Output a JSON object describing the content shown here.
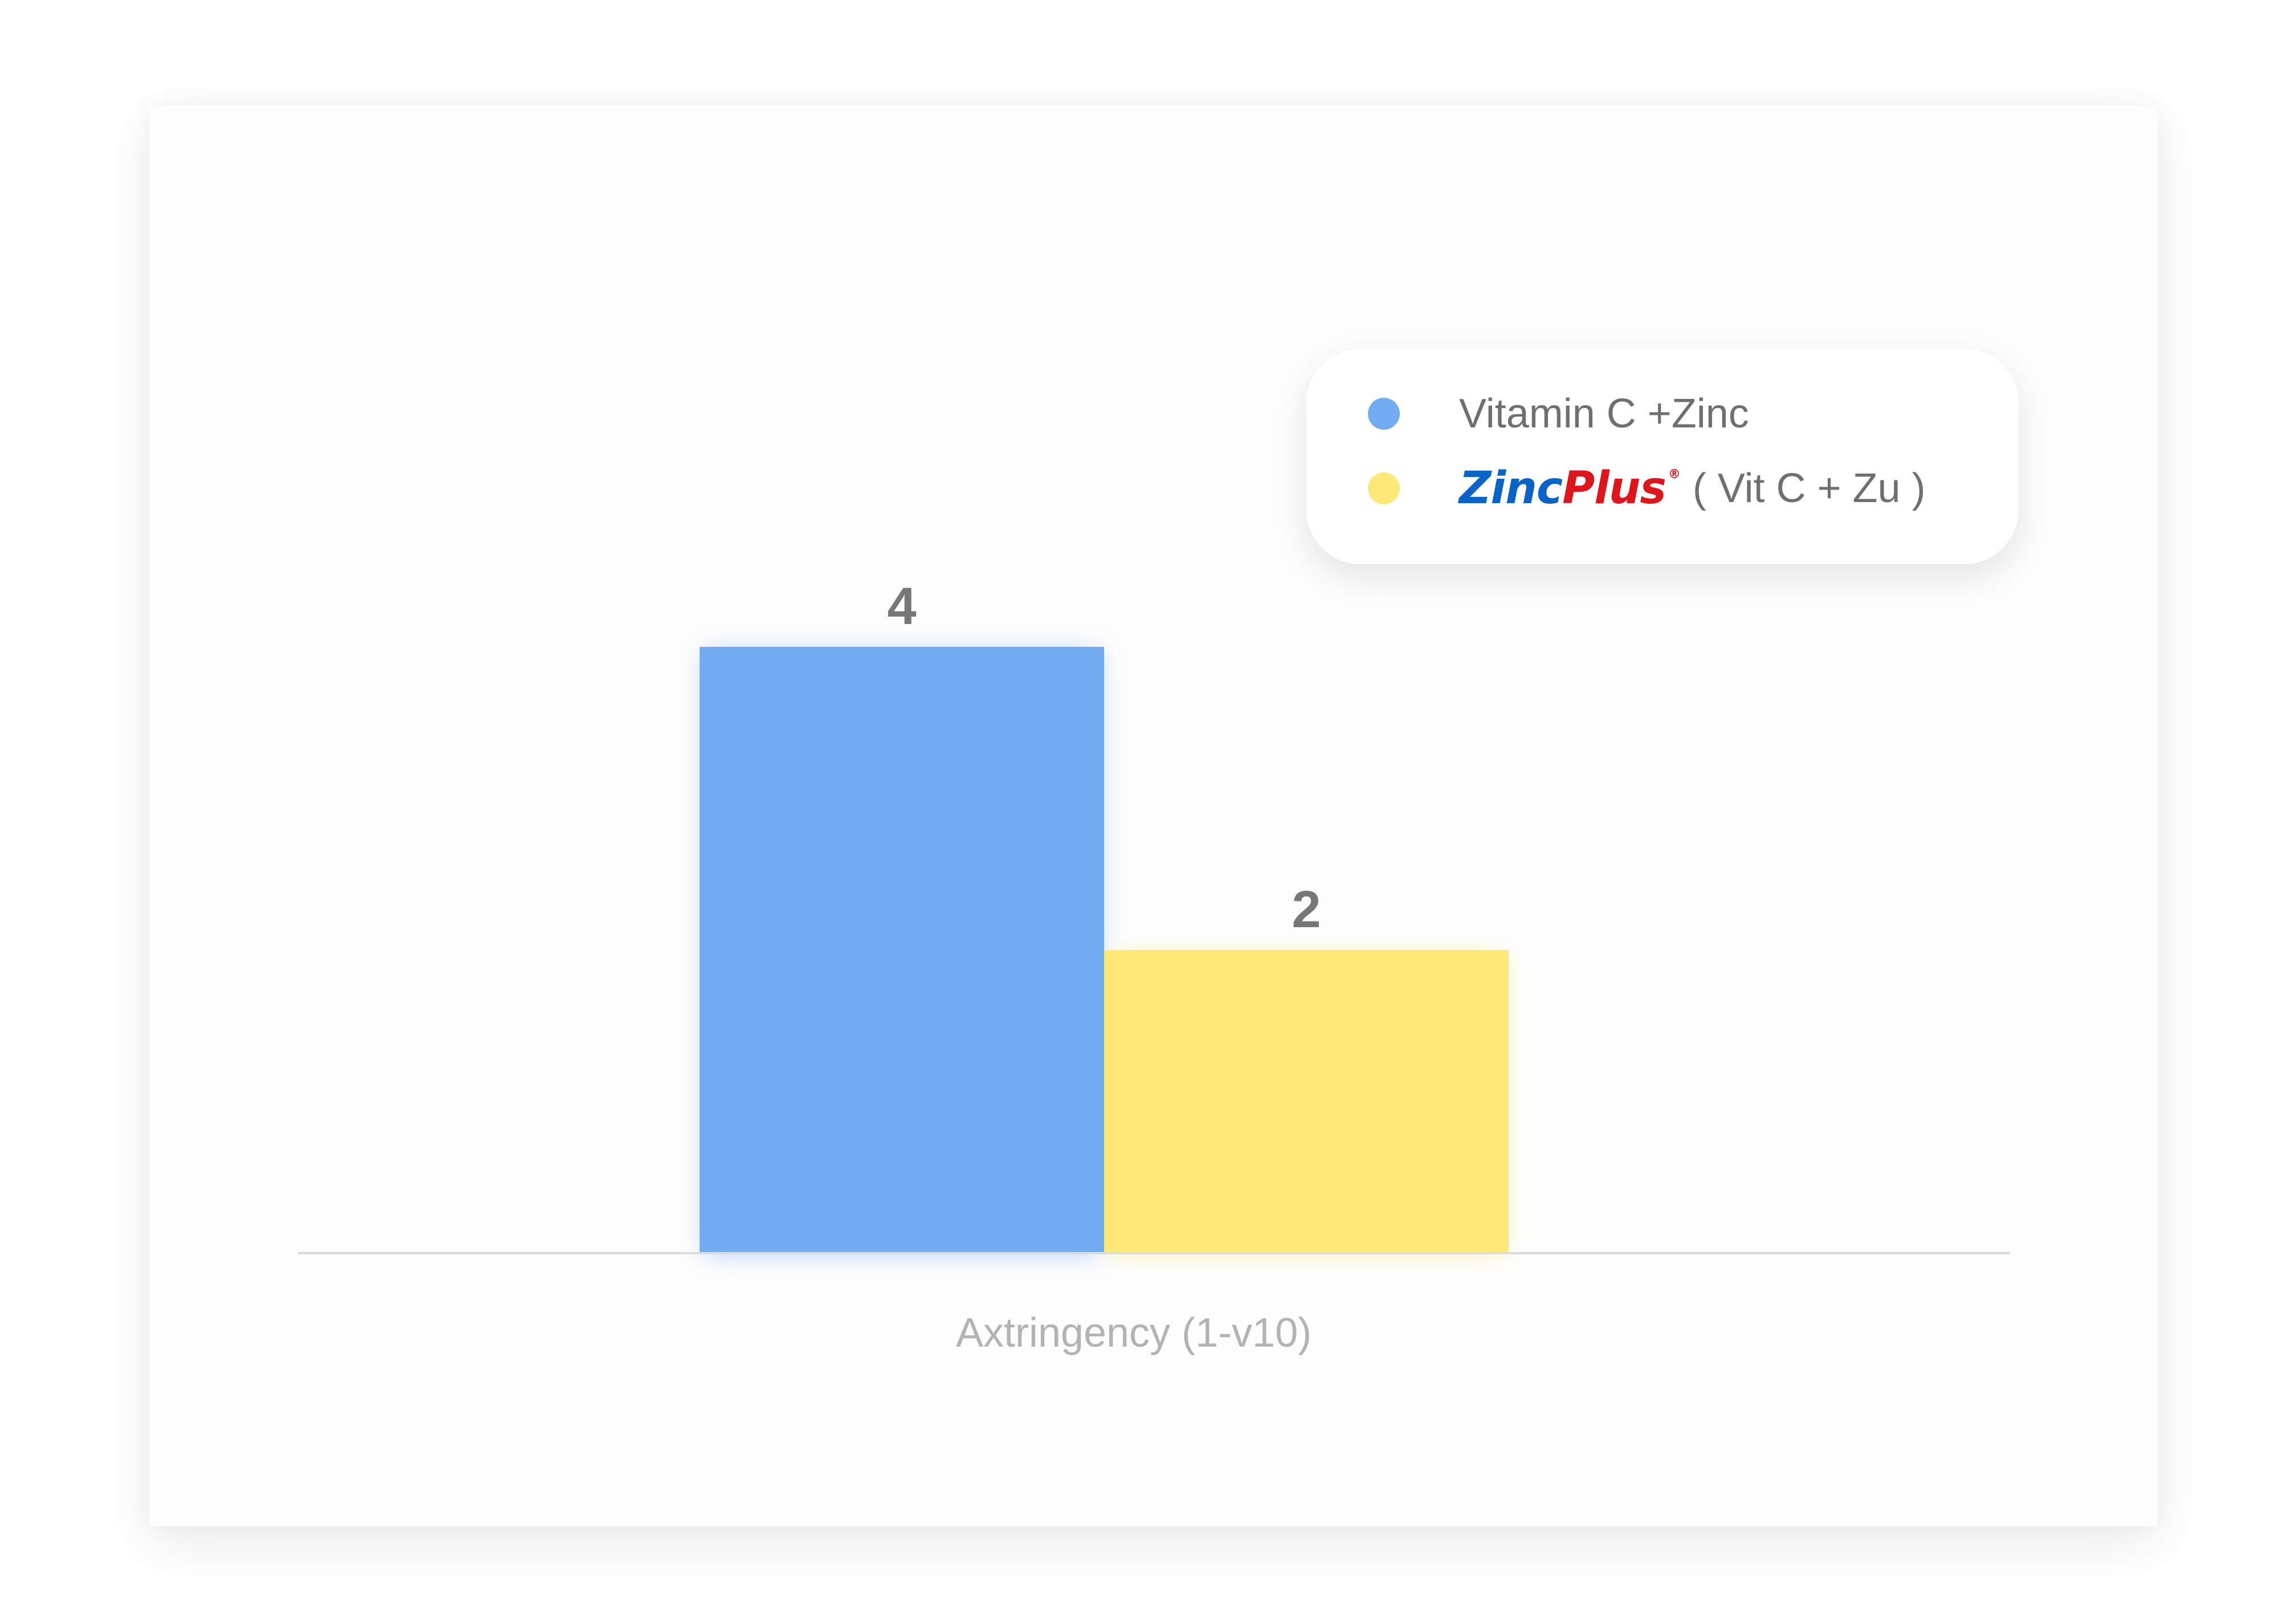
{
  "chart_data": {
    "type": "bar",
    "categories": [
      "Axtringency (1-v10)"
    ],
    "xlabel": "Axtringency (1-v10)",
    "ylabel": "",
    "ylim": [
      0,
      10
    ],
    "grid": false,
    "legend_position": "top-right",
    "series": [
      {
        "name": "Vitamin C +Zinc",
        "values": [
          4
        ],
        "color": "#72abf2",
        "value_label": "4"
      },
      {
        "name": "ZincPlus® ( Vit C + Zu )",
        "values": [
          2
        ],
        "color": "#fee877",
        "value_label": "2"
      }
    ]
  },
  "legend": {
    "items": [
      {
        "label": "Vitamin C +Zinc",
        "color": "#72abf2"
      },
      {
        "brand_part1": "Zinc",
        "brand_part2": "Plus",
        "brand_mark": "®",
        "suffix": "( Vit C + Zu )",
        "color": "#fee877",
        "brand_color_1": "#0a63c6",
        "brand_color_2": "#e0141b"
      }
    ]
  }
}
